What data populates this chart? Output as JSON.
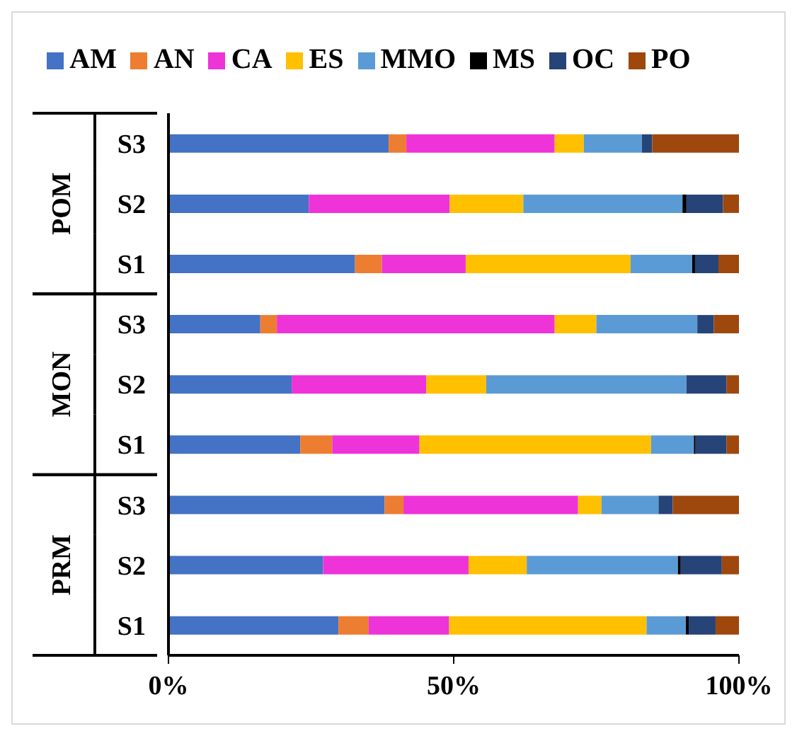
{
  "chart_data": {
    "type": "bar",
    "orientation": "horizontal",
    "stacked": true,
    "categories": [
      "S3",
      "S2",
      "S1",
      "S3",
      "S2",
      "S1",
      "S3",
      "S2",
      "S1"
    ],
    "annotations": [
      "POM",
      "MON",
      "PRM"
    ],
    "series": [
      {
        "name": "AM",
        "color": "#4472c4",
        "values": [
          38.6,
          24.6,
          32.7,
          16.1,
          21.6,
          23.1,
          37.9,
          27.1,
          29.8
        ]
      },
      {
        "name": "AN",
        "color": "#ed7d31",
        "values": [
          3.1,
          0,
          4.7,
          2.9,
          0,
          5.6,
          3.3,
          0,
          5.3
        ]
      },
      {
        "name": "CA",
        "color": "#ee33d8",
        "values": [
          26,
          24.7,
          14.7,
          48.7,
          23.6,
          15.3,
          30.6,
          25.5,
          14.1
        ]
      },
      {
        "name": "ES",
        "color": "#ffc000",
        "values": [
          5.1,
          12.9,
          28.9,
          7.3,
          10.5,
          40.6,
          4.1,
          10.2,
          34.6
        ]
      },
      {
        "name": "MMO",
        "color": "#5b9bd5",
        "values": [
          10.2,
          27.9,
          10.8,
          17.7,
          35.1,
          7.5,
          10,
          26.5,
          6.9
        ]
      },
      {
        "name": "MS",
        "color": "#000000",
        "values": [
          0,
          0.7,
          0.5,
          0,
          0,
          0.3,
          0,
          0.5,
          0.5
        ]
      },
      {
        "name": "OC",
        "color": "#264478",
        "values": [
          1.8,
          6.4,
          4.1,
          2.9,
          7,
          5.4,
          2.5,
          7.2,
          4.7
        ]
      },
      {
        "name": "PO",
        "color": "#9e480e",
        "values": [
          15.2,
          2.8,
          3.6,
          4.4,
          2.2,
          2.2,
          11.6,
          3,
          4.2
        ]
      }
    ],
    "xlim": [
      0,
      100
    ],
    "xticks": [
      {
        "value": 0,
        "label": "0%"
      },
      {
        "value": 50,
        "label": "50%"
      },
      {
        "value": 100,
        "label": "100%"
      }
    ],
    "grid": false,
    "legend": "top"
  }
}
